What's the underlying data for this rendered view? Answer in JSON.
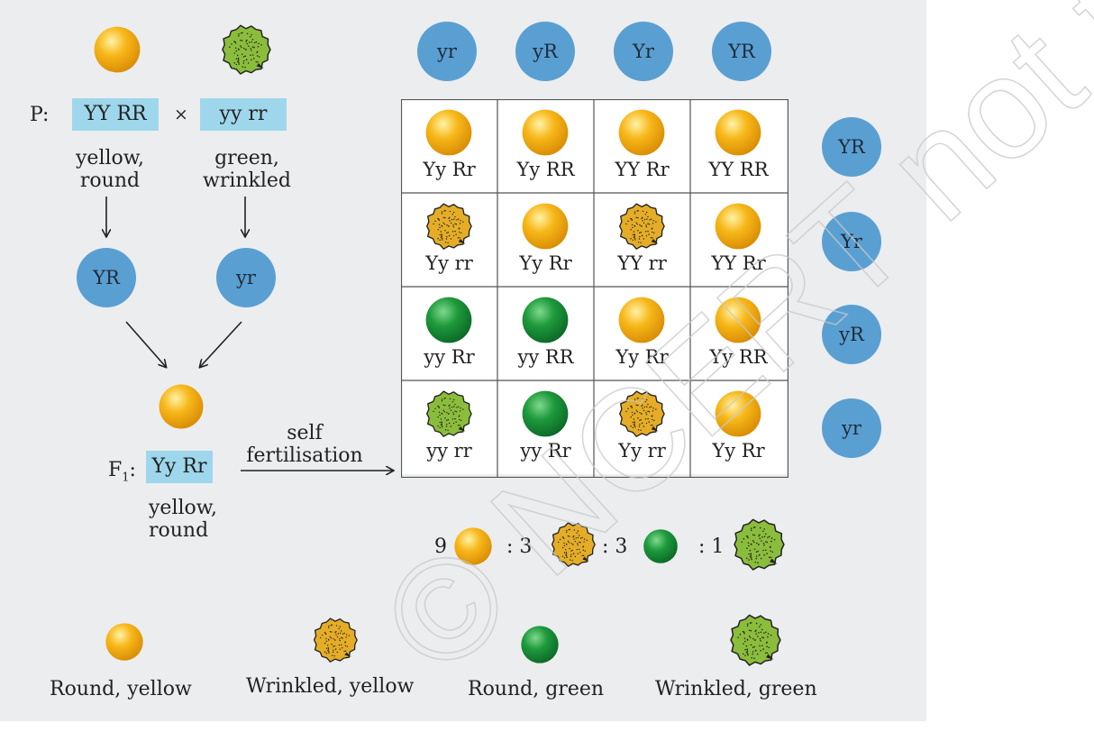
{
  "parents": {
    "prefix": "P:",
    "parent1": {
      "genotype": "YY RR",
      "phenotype_line1": "yellow,",
      "phenotype_line2": "round",
      "gamete": "YR",
      "seed": "round-yellow-seed-icon"
    },
    "cross_symbol": "×",
    "parent2": {
      "genotype": "yy rr",
      "phenotype_line1": "green,",
      "phenotype_line2": "wrinkled",
      "gamete": "yr",
      "seed": "wrinkled-green-seed-icon"
    }
  },
  "f1": {
    "label_main": "F",
    "label_sub": "1",
    "label_colon": ":",
    "genotype": "Yy Rr",
    "phenotype_line1": "yellow,",
    "phenotype_line2": "round"
  },
  "process": {
    "line1": "self",
    "line2": "fertilisation"
  },
  "punnett": {
    "column_gametes": [
      "yr",
      "yR",
      "Yr",
      "YR"
    ],
    "row_gametes": [
      "YR",
      "Yr",
      "yR",
      "yr"
    ],
    "rows": [
      [
        {
          "genotype": "Yy Rr",
          "seed": "round-yellow"
        },
        {
          "genotype": "Yy RR",
          "seed": "round-yellow"
        },
        {
          "genotype": "YY Rr",
          "seed": "round-yellow"
        },
        {
          "genotype": "YY RR",
          "seed": "round-yellow"
        }
      ],
      [
        {
          "genotype": "Yy rr",
          "seed": "wrinkled-yellow"
        },
        {
          "genotype": "Yy Rr",
          "seed": "round-yellow"
        },
        {
          "genotype": "YY rr",
          "seed": "wrinkled-yellow"
        },
        {
          "genotype": "YY Rr",
          "seed": "round-yellow"
        }
      ],
      [
        {
          "genotype": "yy Rr",
          "seed": "round-green"
        },
        {
          "genotype": "yy RR",
          "seed": "round-green"
        },
        {
          "genotype": "Yy Rr",
          "seed": "round-yellow"
        },
        {
          "genotype": "Yy RR",
          "seed": "round-yellow"
        }
      ],
      [
        {
          "genotype": "yy rr",
          "seed": "wrinkled-green"
        },
        {
          "genotype": "yy Rr",
          "seed": "round-green"
        },
        {
          "genotype": "Yy rr",
          "seed": "wrinkled-yellow"
        },
        {
          "genotype": "Yy Rr",
          "seed": "round-yellow"
        }
      ]
    ]
  },
  "ratio": {
    "n1": "9",
    "sep2": ": 3",
    "sep3": ": 3",
    "sep4": ": 1",
    "seeds": [
      "round-yellow",
      "wrinkled-yellow",
      "round-green",
      "wrinkled-green"
    ]
  },
  "legend": [
    {
      "label": "Round, yellow",
      "seed": "round-yellow"
    },
    {
      "label": "Wrinkled, yellow",
      "seed": "wrinkled-yellow"
    },
    {
      "label": "Round, green",
      "seed": "round-green"
    },
    {
      "label": "Wrinkled, green",
      "seed": "wrinkled-green"
    }
  ],
  "watermark": "© NCERT not to be republished",
  "colors": {
    "panel_background": "#ecedef",
    "genotype_box": "#9ed7ec",
    "gamete_circle": "#5a9fd2",
    "yellow_seed": "#f7b719",
    "green_seed": "#1e9a3c",
    "wrinkled_yellow_seed": "#e5ad27",
    "wrinkled_green_seed": "#8bbd3c"
  }
}
